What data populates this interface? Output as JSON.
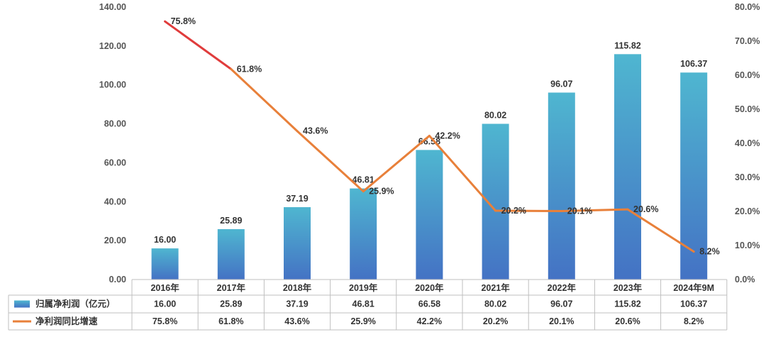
{
  "chart_data": {
    "type": "bar",
    "categories": [
      "2016年",
      "2017年",
      "2018年",
      "2019年",
      "2020年",
      "2021年",
      "2022年",
      "2023年",
      "2024年9M"
    ],
    "series": [
      {
        "name": "归属净利润（亿元）",
        "type": "bar",
        "axis": "left",
        "values": [
          16.0,
          25.89,
          37.19,
          46.81,
          66.58,
          80.02,
          96.07,
          115.82,
          106.37
        ],
        "labels": [
          "16.00",
          "25.89",
          "37.19",
          "46.81",
          "66.58",
          "80.02",
          "96.07",
          "115.82",
          "106.37"
        ],
        "color_top": "#4fb6d0",
        "color_bottom": "#4472c4"
      },
      {
        "name": "净利润同比增速",
        "type": "line",
        "axis": "right",
        "values": [
          75.8,
          61.8,
          43.6,
          25.9,
          42.2,
          20.2,
          20.1,
          20.6,
          8.2
        ],
        "labels": [
          "75.8%",
          "61.8%",
          "43.6%",
          "25.9%",
          "42.2%",
          "20.2%",
          "20.1%",
          "20.6%",
          "8.2%"
        ],
        "color": "#e8803a",
        "color_start": "#e03c3c"
      }
    ],
    "y_left": {
      "range": [
        0,
        140
      ],
      "ticks": [
        "0.00",
        "20.00",
        "40.00",
        "60.00",
        "80.00",
        "100.00",
        "120.00",
        "140.00"
      ]
    },
    "y_right": {
      "range": [
        0,
        80
      ],
      "ticks": [
        "0.0%",
        "10.0%",
        "20.0%",
        "30.0%",
        "40.0%",
        "50.0%",
        "60.0%",
        "70.0%",
        "80.0%"
      ]
    },
    "legend_placement": "data table below chart",
    "grid": false,
    "table_border_color": "#bfbfbf"
  }
}
